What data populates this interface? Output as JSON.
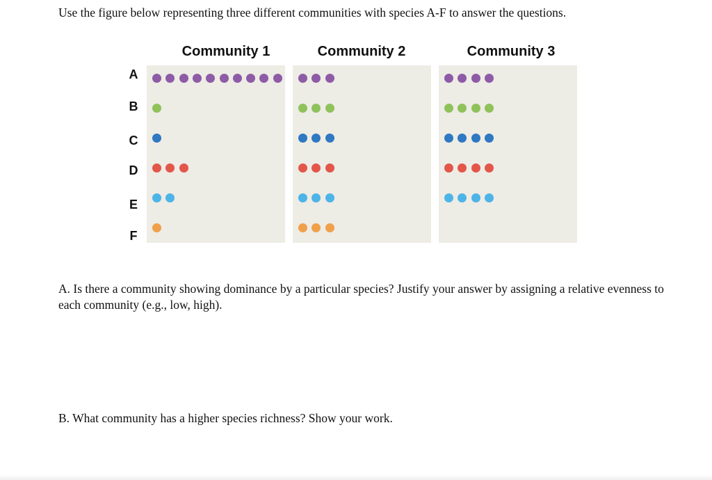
{
  "intro_text": "Use the figure below representing three different communities with species A-F to answer the questions.",
  "figure": {
    "communities": [
      {
        "title": "Community 1",
        "counts": [
          10,
          1,
          1,
          3,
          2,
          1
        ]
      },
      {
        "title": "Community 2",
        "counts": [
          3,
          3,
          3,
          3,
          3,
          3
        ]
      },
      {
        "title": "Community 3",
        "counts": [
          4,
          4,
          4,
          4,
          4,
          0
        ]
      }
    ],
    "species": [
      {
        "label": "A",
        "color": "#8e5ba7"
      },
      {
        "label": "B",
        "color": "#8fc25a"
      },
      {
        "label": "C",
        "color": "#2f78c2"
      },
      {
        "label": "D",
        "color": "#e2574a"
      },
      {
        "label": "E",
        "color": "#4db4e8"
      },
      {
        "label": "F",
        "color": "#f0a04b"
      }
    ]
  },
  "questions": {
    "a": "A. Is there a community showing dominance by a particular species? Justify your answer by assigning a relative evenness to each community (e.g., low, high).",
    "b": "B. What community has a higher species richness? Show your work."
  }
}
